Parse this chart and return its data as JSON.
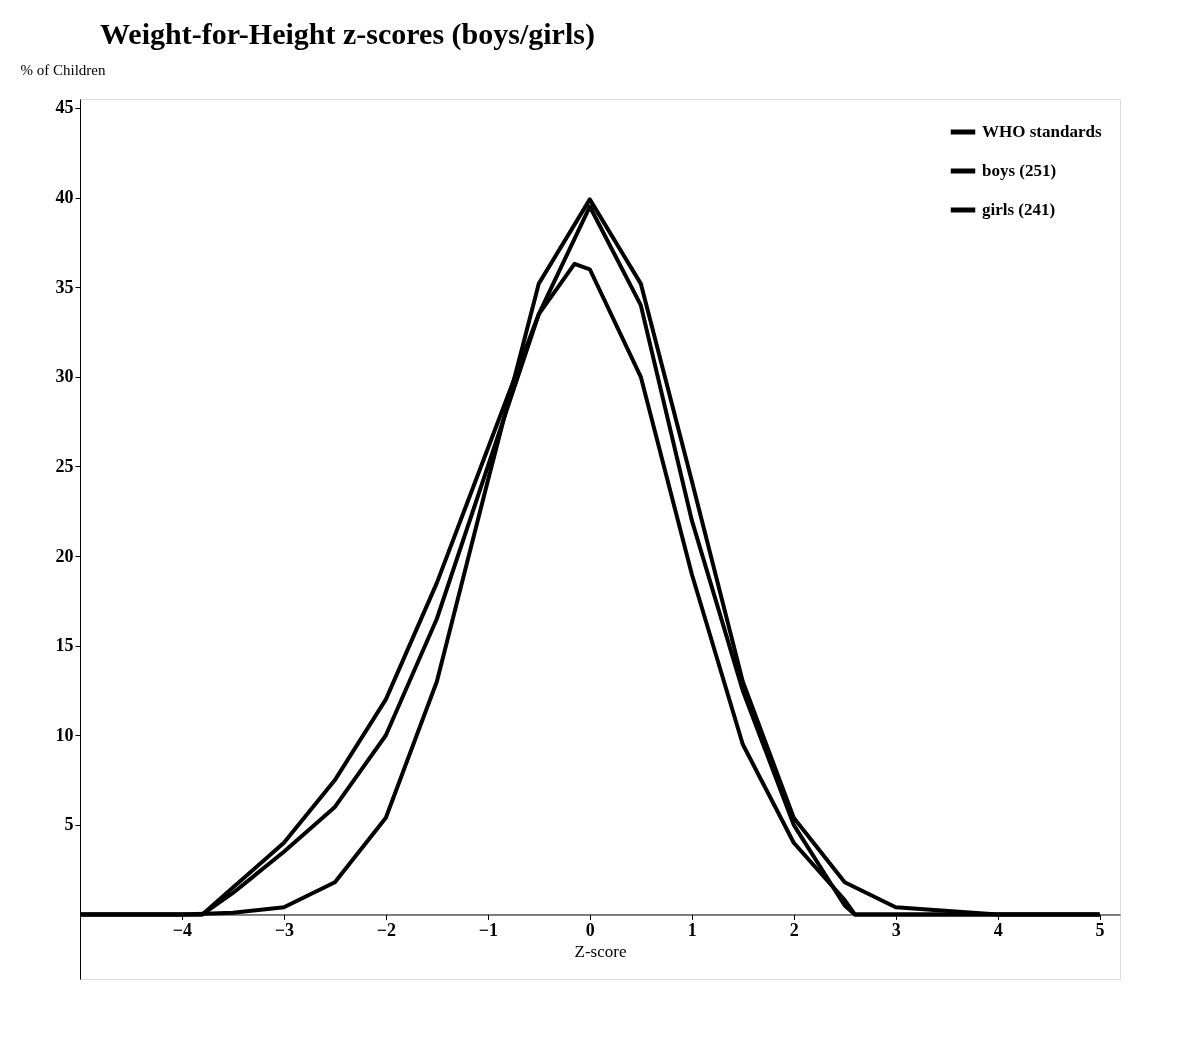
{
  "chart_data": {
    "type": "line",
    "title": "Weight-for-Height z-scores (boys/girls)",
    "ylabel": "% of Children",
    "xlabel": "Z-score",
    "xlim": [
      -5,
      5.2
    ],
    "xticks": [
      -4,
      -3,
      -2,
      -1,
      0,
      1,
      2,
      3,
      4,
      5
    ],
    "ylim": [
      -3.6,
      45.5
    ],
    "yticks": [
      5,
      10,
      15,
      20,
      25,
      30,
      35,
      40,
      45
    ],
    "grid": false,
    "legend": "top right",
    "line_style": "solid",
    "marker": "none",
    "series": [
      {
        "name": "WHO standards",
        "color": "#000000",
        "x": [
          -5,
          -4,
          -3.5,
          -3,
          -2.5,
          -2,
          -1.5,
          -1,
          -0.5,
          0,
          0.5,
          1,
          1.5,
          2,
          2.5,
          3,
          4,
          5
        ],
        "values": [
          0,
          0,
          0.1,
          0.4,
          1.8,
          5.4,
          13,
          24.2,
          35.2,
          39.9,
          35.2,
          24.2,
          13,
          5.4,
          1.8,
          0.4,
          0,
          0
        ]
      },
      {
        "name": "boys (251)",
        "color": "#000000",
        "x": [
          -5,
          -3.8,
          -3.5,
          -3,
          -2.5,
          -2,
          -1.5,
          -1,
          -0.5,
          0,
          0.5,
          1,
          1.5,
          2,
          2.5,
          2.6,
          5
        ],
        "values": [
          0,
          0,
          1.2,
          3.5,
          6,
          10,
          16.5,
          25,
          33.5,
          39.5,
          34,
          22,
          12.5,
          5,
          0.5,
          0,
          0
        ]
      },
      {
        "name": "girls (241)",
        "color": "#000000",
        "x": [
          -5,
          -3.8,
          -3.5,
          -3,
          -2.5,
          -2,
          -1.5,
          -1,
          -0.5,
          -0.15,
          0,
          0.5,
          1,
          1.5,
          2,
          2.5,
          2.6,
          5
        ],
        "values": [
          0,
          0,
          1.5,
          4,
          7.5,
          12,
          18.5,
          26,
          33.5,
          36.3,
          36,
          30,
          19,
          9.5,
          4,
          0.8,
          0,
          0
        ]
      }
    ]
  }
}
